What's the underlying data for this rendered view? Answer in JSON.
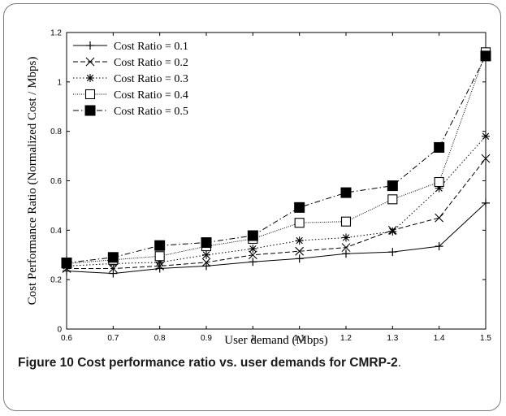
{
  "chart_data": {
    "type": "line",
    "title": "",
    "xlabel": "User demand (Mbps)",
    "ylabel": "Cost Performance Ratio (Normalized Cost / Mbps)",
    "xlim": [
      0.6,
      1.5
    ],
    "ylim": [
      0,
      1.2
    ],
    "x_ticks": [
      "0.6",
      "0.7",
      "0.8",
      "0.9",
      "1",
      "1.1",
      "1.2",
      "1.3",
      "1.4",
      "1.5"
    ],
    "y_ticks": [
      "0",
      "0.2",
      "0.4",
      "0.6",
      "0.8",
      "1",
      "1.2"
    ],
    "x": [
      0.6,
      0.7,
      0.8,
      0.9,
      1.0,
      1.1,
      1.2,
      1.3,
      1.4,
      1.5
    ],
    "grid": false,
    "legend_position": "top-left",
    "series": [
      {
        "name": "Cost Ratio = 0.1",
        "marker": "plus",
        "dash": "solid",
        "values": [
          0.235,
          0.225,
          0.245,
          0.255,
          0.272,
          0.285,
          0.305,
          0.312,
          0.335,
          0.51
        ]
      },
      {
        "name": "Cost Ratio = 0.2",
        "marker": "x",
        "dash": "dashed",
        "values": [
          0.245,
          0.245,
          0.255,
          0.27,
          0.3,
          0.315,
          0.33,
          0.4,
          0.45,
          0.69
        ]
      },
      {
        "name": "Cost Ratio = 0.3",
        "marker": "star",
        "dash": "dotted",
        "values": [
          0.255,
          0.265,
          0.27,
          0.3,
          0.325,
          0.358,
          0.37,
          0.395,
          0.57,
          0.78
        ]
      },
      {
        "name": "Cost Ratio = 0.4",
        "marker": "open-square",
        "dash": "densely-dotted",
        "values": [
          0.265,
          0.28,
          0.295,
          0.335,
          0.365,
          0.43,
          0.435,
          0.525,
          0.595,
          1.12
        ]
      },
      {
        "name": "Cost Ratio = 0.5",
        "marker": "filled-square",
        "dash": "dash-dot",
        "values": [
          0.268,
          0.29,
          0.338,
          0.35,
          0.378,
          0.492,
          0.552,
          0.58,
          0.735,
          1.105
        ]
      }
    ]
  },
  "caption": {
    "label": "Figure 10",
    "title": "Cost performance ratio vs. user demands for CMRP-2",
    "tail": "."
  }
}
